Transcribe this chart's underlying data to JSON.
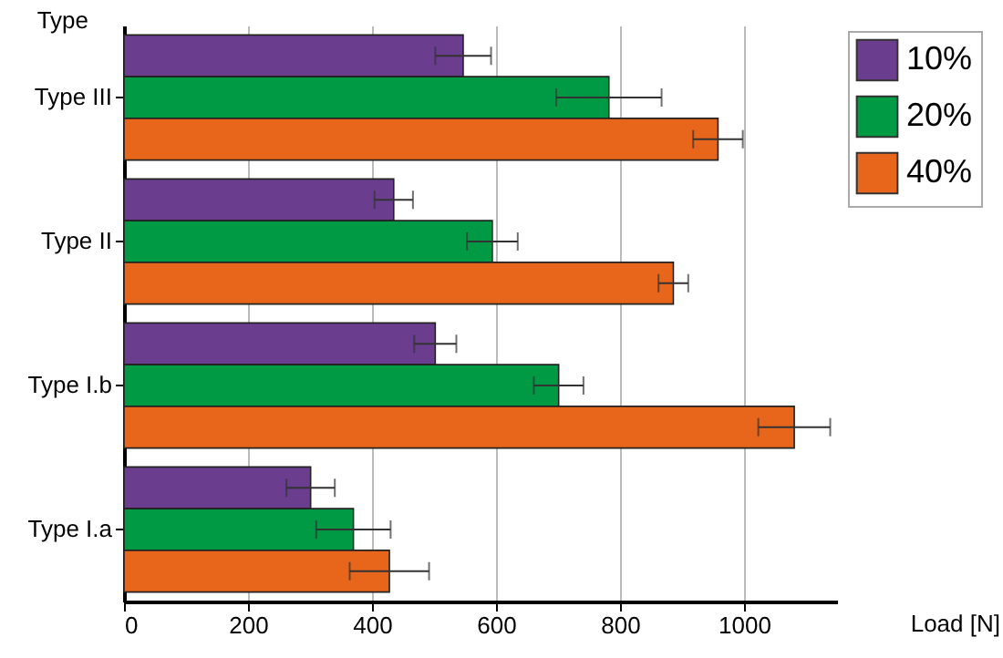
{
  "chart_data": {
    "type": "bar",
    "orientation": "horizontal",
    "ylabel": "Type",
    "xlabel": "Load [N]",
    "categories": [
      "Type III",
      "Type II",
      "Type I.b",
      "Type I.a"
    ],
    "series": [
      {
        "name": "10%",
        "color": "#6a3d8f",
        "values": [
          547,
          435,
          502,
          301
        ],
        "errors": [
          45,
          31,
          34,
          39
        ]
      },
      {
        "name": "20%",
        "color": "#009a44",
        "values": [
          782,
          594,
          701,
          370
        ],
        "errors": [
          85,
          41,
          40,
          60
        ]
      },
      {
        "name": "40%",
        "color": "#e8661b",
        "values": [
          958,
          886,
          1081,
          428
        ],
        "errors": [
          40,
          24,
          58,
          64
        ]
      }
    ],
    "xlim": [
      0,
      1150
    ],
    "xticks": [
      0,
      200,
      400,
      600,
      800,
      1000
    ],
    "grid": "x",
    "legend": "top right"
  }
}
